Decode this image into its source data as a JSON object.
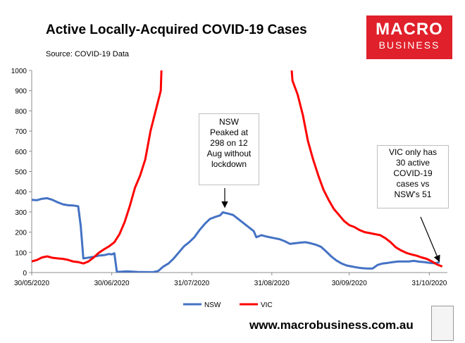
{
  "header": {
    "title": "Active Locally-Acquired COVID-19 Cases",
    "source": "Source: COVID-19 Data"
  },
  "logo": {
    "line1": "MACRO",
    "line2": "BUSINESS",
    "color": "#e0202a"
  },
  "footer": {
    "website": "www.macrobusiness.com.au"
  },
  "annotations": {
    "nsw": [
      "NSW",
      "Peaked at",
      "298 on 12",
      "Aug without",
      "lockdown"
    ],
    "vic": [
      "VIC only has",
      "30 active",
      "COVID-19",
      "cases vs",
      "NSW's 51"
    ]
  },
  "chart_data": {
    "type": "line",
    "title": "Active Locally-Acquired COVID-19 Cases",
    "ylim": [
      0,
      1000
    ],
    "yticks": [
      0,
      100,
      200,
      300,
      400,
      500,
      600,
      700,
      800,
      900,
      1000
    ],
    "xlim": [
      "2020-05-30",
      "2020-11-07"
    ],
    "xticks": [
      "30/05/2020",
      "30/06/2020",
      "31/07/2020",
      "31/08/2020",
      "30/09/2020",
      "31/10/2020"
    ],
    "xtick_dates": [
      "2020-05-30",
      "2020-06-30",
      "2020-07-31",
      "2020-08-31",
      "2020-09-30",
      "2020-10-31"
    ],
    "grid": false,
    "legend": "bottom",
    "series": [
      {
        "name": "NSW",
        "color": "#4472c4",
        "points": [
          [
            "2020-05-30",
            360
          ],
          [
            "2020-06-01",
            358
          ],
          [
            "2020-06-03",
            365
          ],
          [
            "2020-06-05",
            368
          ],
          [
            "2020-06-07",
            360
          ],
          [
            "2020-06-09",
            348
          ],
          [
            "2020-06-11",
            338
          ],
          [
            "2020-06-13",
            333
          ],
          [
            "2020-06-15",
            332
          ],
          [
            "2020-06-17",
            328
          ],
          [
            "2020-06-18",
            230
          ],
          [
            "2020-06-19",
            70
          ],
          [
            "2020-06-21",
            74
          ],
          [
            "2020-06-23",
            78
          ],
          [
            "2020-06-25",
            84
          ],
          [
            "2020-06-27",
            86
          ],
          [
            "2020-06-29",
            92
          ],
          [
            "2020-06-30",
            90
          ],
          [
            "2020-07-01",
            95
          ],
          [
            "2020-07-02",
            3
          ],
          [
            "2020-07-06",
            6
          ],
          [
            "2020-07-10",
            3
          ],
          [
            "2020-07-14",
            2
          ],
          [
            "2020-07-16",
            2
          ],
          [
            "2020-07-18",
            8
          ],
          [
            "2020-07-20",
            30
          ],
          [
            "2020-07-22",
            45
          ],
          [
            "2020-07-24",
            70
          ],
          [
            "2020-07-26",
            100
          ],
          [
            "2020-07-28",
            130
          ],
          [
            "2020-07-30",
            150
          ],
          [
            "2020-08-01",
            175
          ],
          [
            "2020-08-03",
            210
          ],
          [
            "2020-08-05",
            240
          ],
          [
            "2020-08-07",
            265
          ],
          [
            "2020-08-09",
            275
          ],
          [
            "2020-08-11",
            283
          ],
          [
            "2020-08-12",
            298
          ],
          [
            "2020-08-14",
            292
          ],
          [
            "2020-08-16",
            285
          ],
          [
            "2020-08-18",
            265
          ],
          [
            "2020-08-20",
            245
          ],
          [
            "2020-08-22",
            225
          ],
          [
            "2020-08-24",
            205
          ],
          [
            "2020-08-25",
            175
          ],
          [
            "2020-08-27",
            185
          ],
          [
            "2020-08-29",
            178
          ],
          [
            "2020-09-01",
            170
          ],
          [
            "2020-09-03",
            165
          ],
          [
            "2020-09-05",
            155
          ],
          [
            "2020-09-07",
            142
          ],
          [
            "2020-09-09",
            145
          ],
          [
            "2020-09-11",
            148
          ],
          [
            "2020-09-13",
            150
          ],
          [
            "2020-09-15",
            145
          ],
          [
            "2020-09-17",
            138
          ],
          [
            "2020-09-19",
            128
          ],
          [
            "2020-09-21",
            105
          ],
          [
            "2020-09-23",
            80
          ],
          [
            "2020-09-25",
            60
          ],
          [
            "2020-09-27",
            45
          ],
          [
            "2020-09-29",
            35
          ],
          [
            "2020-10-01",
            30
          ],
          [
            "2020-10-03",
            25
          ],
          [
            "2020-10-05",
            22
          ],
          [
            "2020-10-07",
            20
          ],
          [
            "2020-10-09",
            20
          ],
          [
            "2020-10-11",
            38
          ],
          [
            "2020-10-13",
            45
          ],
          [
            "2020-10-15",
            48
          ],
          [
            "2020-10-17",
            52
          ],
          [
            "2020-10-19",
            55
          ],
          [
            "2020-10-21",
            55
          ],
          [
            "2020-10-23",
            55
          ],
          [
            "2020-10-25",
            58
          ],
          [
            "2020-10-27",
            54
          ],
          [
            "2020-10-29",
            52
          ],
          [
            "2020-10-31",
            48
          ],
          [
            "2020-11-02",
            46
          ],
          [
            "2020-11-04",
            51
          ]
        ]
      },
      {
        "name": "VIC",
        "color": "#ff0000",
        "points": [
          [
            "2020-05-30",
            55
          ],
          [
            "2020-06-01",
            62
          ],
          [
            "2020-06-03",
            75
          ],
          [
            "2020-06-05",
            80
          ],
          [
            "2020-06-07",
            73
          ],
          [
            "2020-06-09",
            70
          ],
          [
            "2020-06-11",
            68
          ],
          [
            "2020-06-13",
            63
          ],
          [
            "2020-06-15",
            55
          ],
          [
            "2020-06-17",
            52
          ],
          [
            "2020-06-19",
            45
          ],
          [
            "2020-06-21",
            55
          ],
          [
            "2020-06-23",
            75
          ],
          [
            "2020-06-25",
            98
          ],
          [
            "2020-06-27",
            115
          ],
          [
            "2020-06-29",
            130
          ],
          [
            "2020-07-01",
            150
          ],
          [
            "2020-07-03",
            190
          ],
          [
            "2020-07-05",
            250
          ],
          [
            "2020-07-07",
            330
          ],
          [
            "2020-07-09",
            420
          ],
          [
            "2020-07-11",
            480
          ],
          [
            "2020-07-13",
            560
          ],
          [
            "2020-07-15",
            700
          ],
          [
            "2020-07-17",
            800
          ],
          [
            "2020-07-19",
            900
          ],
          [
            "2020-07-20",
            1000
          ],
          [
            "2020-09-06",
            1000
          ],
          [
            "2020-09-08",
            950
          ],
          [
            "2020-09-10",
            880
          ],
          [
            "2020-09-12",
            780
          ],
          [
            "2020-09-14",
            650
          ],
          [
            "2020-09-16",
            560
          ],
          [
            "2020-09-18",
            480
          ],
          [
            "2020-09-20",
            410
          ],
          [
            "2020-09-22",
            360
          ],
          [
            "2020-09-24",
            315
          ],
          [
            "2020-09-26",
            285
          ],
          [
            "2020-09-28",
            255
          ],
          [
            "2020-09-30",
            235
          ],
          [
            "2020-10-02",
            225
          ],
          [
            "2020-10-04",
            210
          ],
          [
            "2020-10-06",
            200
          ],
          [
            "2020-10-08",
            195
          ],
          [
            "2020-10-10",
            190
          ],
          [
            "2020-10-12",
            185
          ],
          [
            "2020-10-14",
            170
          ],
          [
            "2020-10-16",
            150
          ],
          [
            "2020-10-18",
            125
          ],
          [
            "2020-10-20",
            110
          ],
          [
            "2020-10-22",
            98
          ],
          [
            "2020-10-24",
            90
          ],
          [
            "2020-10-26",
            84
          ],
          [
            "2020-10-28",
            75
          ],
          [
            "2020-10-30",
            68
          ],
          [
            "2020-11-01",
            55
          ],
          [
            "2020-11-03",
            40
          ],
          [
            "2020-11-05",
            30
          ]
        ]
      }
    ]
  }
}
